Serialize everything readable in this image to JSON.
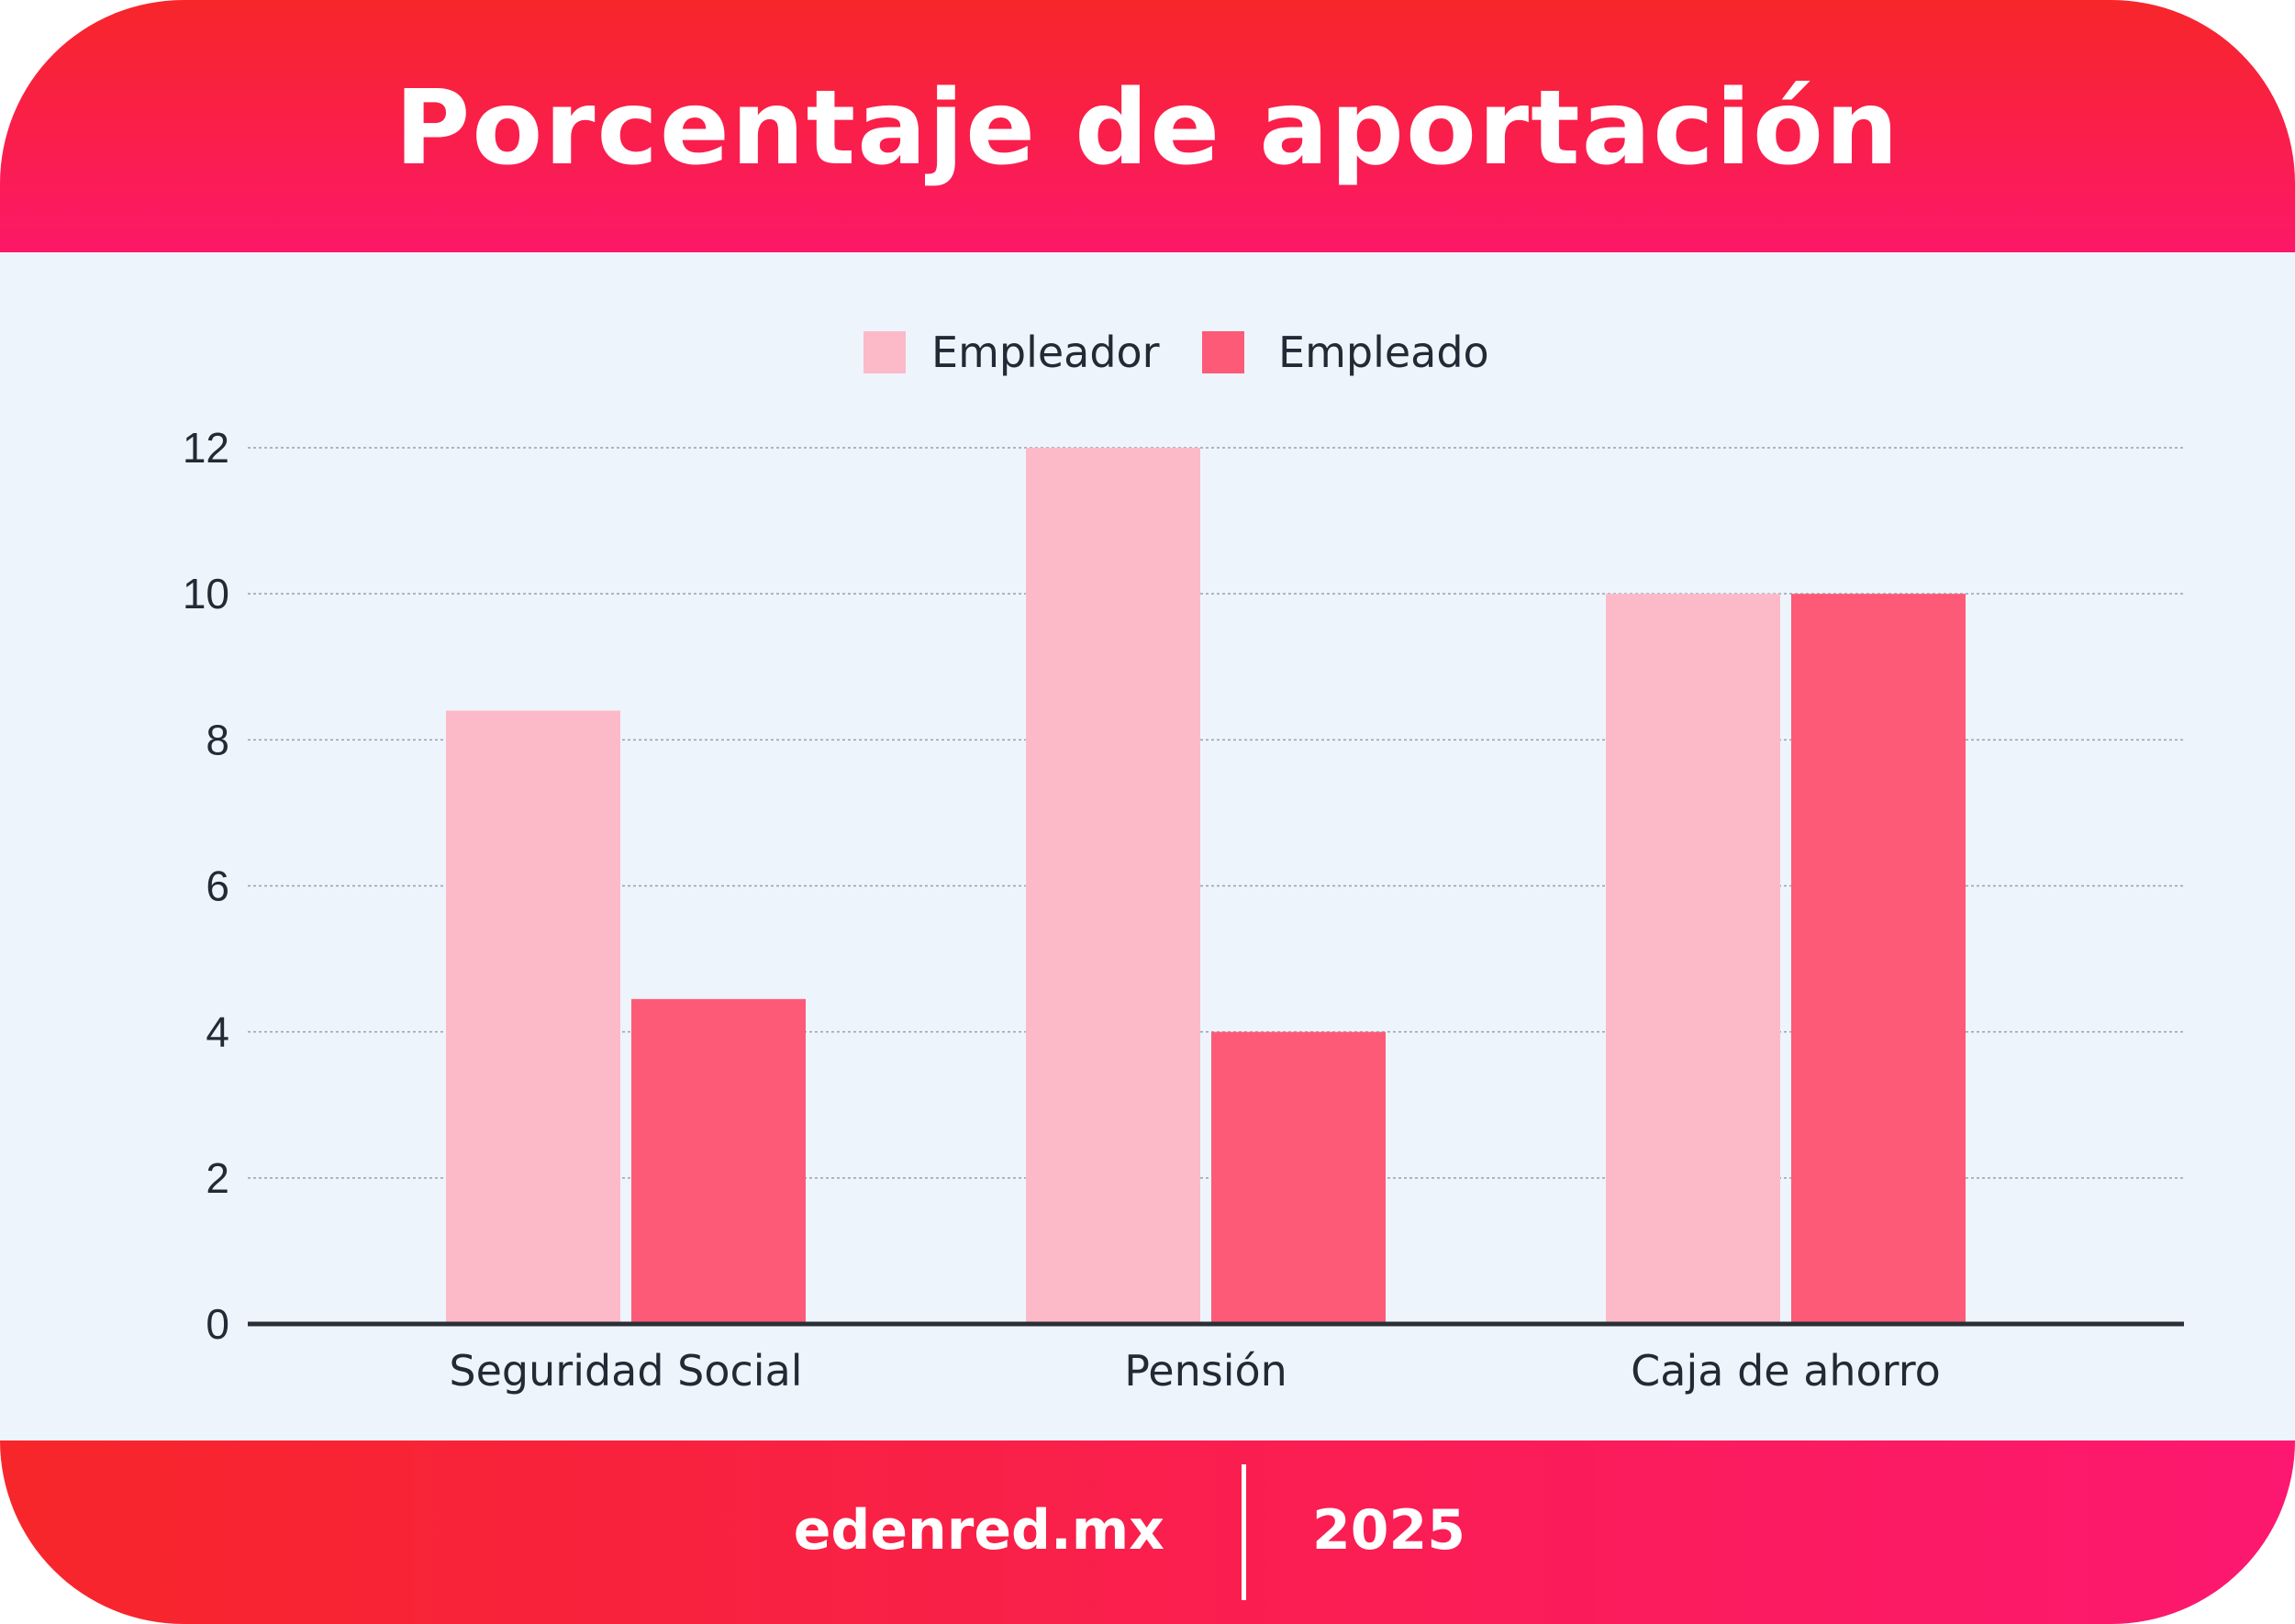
{
  "header": {
    "title": "Porcentaje de aportación"
  },
  "footer": {
    "site": "edenred.mx",
    "year": "2025"
  },
  "colors": {
    "empleador": "#fcbac9",
    "empleado": "#fd5a78",
    "accent": "#f7262a",
    "background": "#eef4fc"
  },
  "chart_data": {
    "type": "bar",
    "title": "Porcentaje de aportación",
    "xlabel": "",
    "ylabel": "",
    "categories": [
      "Seguridad Social",
      "Pensión",
      "Caja de ahorro"
    ],
    "series": [
      {
        "name": "Empleador",
        "values": [
          8.4,
          12,
          10
        ]
      },
      {
        "name": "Empleado",
        "values": [
          4.45,
          4,
          10
        ]
      }
    ],
    "ylim": [
      0,
      12
    ],
    "yticks": [
      "0",
      "2",
      "4",
      "6",
      "8",
      "10",
      "12"
    ],
    "grid": true,
    "legend": "top-center"
  }
}
